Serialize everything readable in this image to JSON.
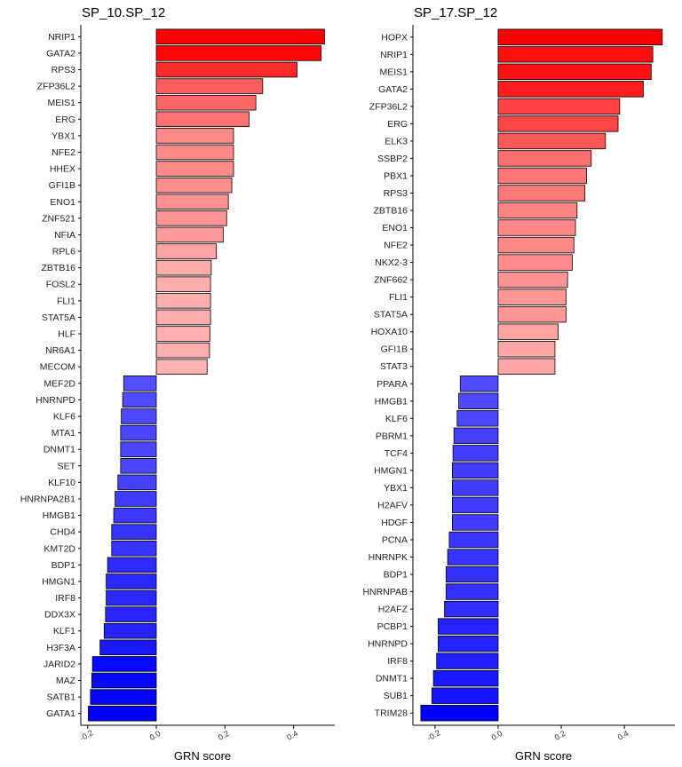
{
  "chart_data": [
    {
      "type": "bar",
      "orientation": "horizontal",
      "title": "SP_10.SP_12",
      "xlabel": "GRN score",
      "ylabel": "",
      "xlim": [
        -0.22,
        0.52
      ],
      "xticks": [
        -0.2,
        0.0,
        0.2,
        0.4
      ],
      "tick_labels": [
        "-0.2",
        "0.0",
        "0.2",
        "0.4"
      ],
      "categories": [
        "NRIP1",
        "GATA2",
        "RPS3",
        "ZFP36L2",
        "MEIS1",
        "ERG",
        "YBX1",
        "NFE2",
        "HHEX",
        "GFI1B",
        "ENO1",
        "ZNF521",
        "NFIA",
        "RPL6",
        "ZBTB16",
        "FOSL2",
        "FLI1",
        "STAT5A",
        "HLF",
        "NR6A1",
        "MECOM",
        "MEF2D",
        "HNRNPD",
        "KLF6",
        "MTA1",
        "DNMT1",
        "SET",
        "KLF10",
        "HNRNPA2B1",
        "HMGB1",
        "CHD4",
        "KMT2D",
        "BDP1",
        "HMGN1",
        "IRF8",
        "DDX3X",
        "KLF1",
        "H3F3A",
        "JARID2",
        "MAZ",
        "SATB1",
        "GATA1"
      ],
      "values": [
        0.49,
        0.48,
        0.41,
        0.31,
        0.29,
        0.27,
        0.225,
        0.225,
        0.225,
        0.22,
        0.21,
        0.205,
        0.195,
        0.175,
        0.16,
        0.158,
        0.158,
        0.158,
        0.156,
        0.155,
        0.148,
        -0.095,
        -0.098,
        -0.102,
        -0.104,
        -0.104,
        -0.104,
        -0.112,
        -0.12,
        -0.124,
        -0.13,
        -0.13,
        -0.142,
        -0.146,
        -0.146,
        -0.148,
        -0.152,
        -0.164,
        -0.186,
        -0.188,
        -0.192,
        -0.198
      ]
    },
    {
      "type": "bar",
      "orientation": "horizontal",
      "title": "SP_17.SP_12",
      "xlabel": "GRN score",
      "ylabel": "",
      "xlim": [
        -0.27,
        0.56
      ],
      "xticks": [
        -0.2,
        0.0,
        0.2,
        0.4
      ],
      "tick_labels": [
        "-0.2",
        "0.0",
        "0.2",
        "0.4"
      ],
      "categories": [
        "HOPX",
        "NRIP1",
        "MEIS1",
        "GATA2",
        "ZFP36L2",
        "ERG",
        "ELK3",
        "SSBP2",
        "PBX1",
        "RPS3",
        "ZBTB16",
        "ENO1",
        "NFE2",
        "NKX2-3",
        "ZNF662",
        "FLI1",
        "STAT5A",
        "HOXA10",
        "GFI1B",
        "STAT3",
        "PPARA",
        "HMGB1",
        "KLF6",
        "PBRM1",
        "TCF4",
        "HMGN1",
        "YBX1",
        "H2AFV",
        "HDGF",
        "PCNA",
        "HNRNPK",
        "BDP1",
        "HNRNPAB",
        "H2AFZ",
        "PCBP1",
        "HNRNPD",
        "IRF8",
        "DNMT1",
        "SUB1",
        "TRIM28"
      ],
      "values": [
        0.52,
        0.49,
        0.485,
        0.46,
        0.385,
        0.38,
        0.34,
        0.295,
        0.28,
        0.275,
        0.25,
        0.245,
        0.24,
        0.235,
        0.22,
        0.215,
        0.215,
        0.19,
        0.18,
        0.18,
        -0.12,
        -0.125,
        -0.13,
        -0.14,
        -0.143,
        -0.145,
        -0.145,
        -0.145,
        -0.145,
        -0.155,
        -0.16,
        -0.165,
        -0.165,
        -0.17,
        -0.19,
        -0.19,
        -0.195,
        -0.205,
        -0.21,
        -0.245
      ]
    }
  ]
}
